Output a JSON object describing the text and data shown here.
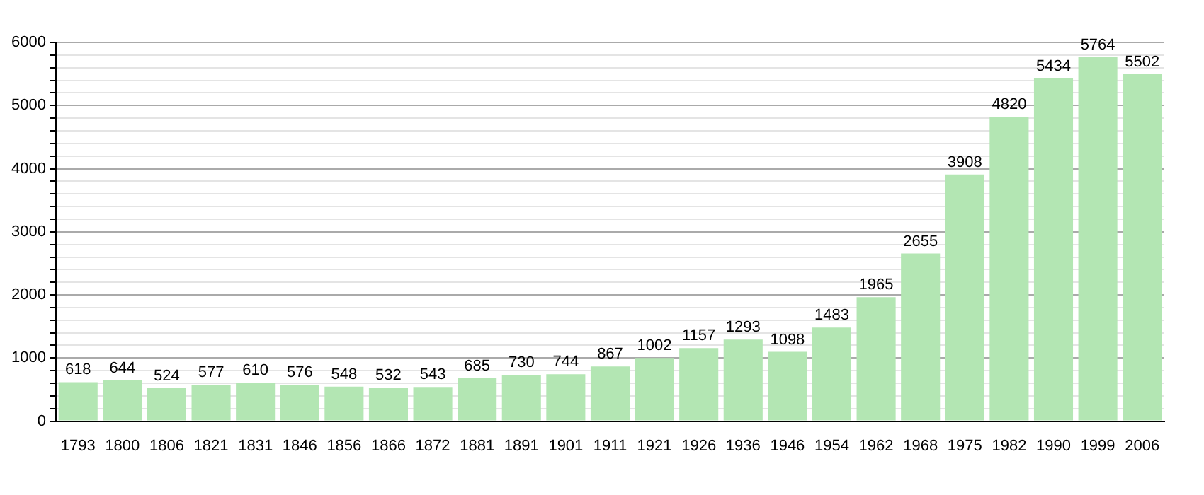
{
  "chart_data": {
    "type": "bar",
    "categories": [
      "1793",
      "1800",
      "1806",
      "1821",
      "1831",
      "1846",
      "1856",
      "1866",
      "1872",
      "1881",
      "1891",
      "1901",
      "1911",
      "1921",
      "1926",
      "1936",
      "1946",
      "1954",
      "1962",
      "1968",
      "1975",
      "1982",
      "1990",
      "1999",
      "2006"
    ],
    "values": [
      618,
      644,
      524,
      577,
      610,
      576,
      548,
      532,
      543,
      685,
      730,
      744,
      867,
      1002,
      1157,
      1293,
      1098,
      1483,
      1965,
      2655,
      3908,
      4820,
      5434,
      5764,
      5502
    ],
    "color": "#b3e6b3",
    "ylim": [
      0,
      6000
    ],
    "yticks": [
      0,
      {
        "value": 200,
        "label": null
      },
      {
        "value": 400,
        "label": null
      },
      {
        "value": 600,
        "label": null
      },
      {
        "value": 800,
        "label": null
      },
      1000,
      {
        "value": 1200,
        "label": null
      },
      {
        "value": 1400,
        "label": null
      },
      {
        "value": 1600,
        "label": null
      },
      {
        "value": 1800,
        "label": null
      },
      2000,
      {
        "value": 2200,
        "label": null
      },
      {
        "value": 2400,
        "label": null
      },
      {
        "value": 2600,
        "label": null
      },
      {
        "value": 2800,
        "label": null
      },
      3000,
      {
        "value": 3200,
        "label": null
      },
      {
        "value": 3400,
        "label": null
      },
      {
        "value": 3600,
        "label": null
      },
      {
        "value": 3800,
        "label": null
      },
      4000,
      {
        "value": 4200,
        "label": null
      },
      {
        "value": 4400,
        "label": null
      },
      {
        "value": 4600,
        "label": null
      },
      {
        "value": 4800,
        "label": null
      },
      5000,
      {
        "value": 5200,
        "label": null
      },
      {
        "value": 5400,
        "label": null
      },
      {
        "value": 5600,
        "label": null
      },
      {
        "value": 5800,
        "label": null
      },
      6000
    ],
    "grid": true,
    "data_labels": true
  }
}
